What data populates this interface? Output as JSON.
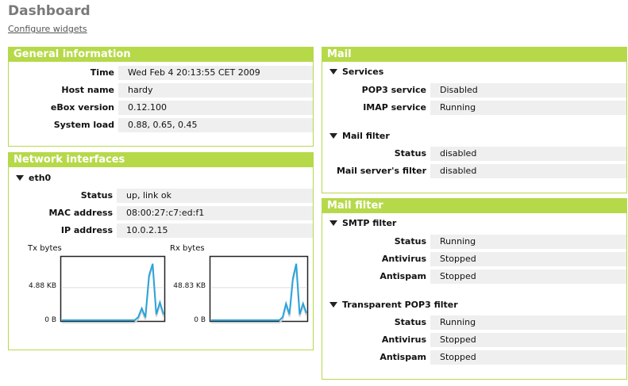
{
  "page": {
    "title": "Dashboard",
    "configure_link": "Configure widgets"
  },
  "general": {
    "title": "General information",
    "rows": [
      {
        "label": "Time",
        "value": "Wed Feb 4 20:13:55 CET 2009"
      },
      {
        "label": "Host name",
        "value": "hardy"
      },
      {
        "label": "eBox version",
        "value": "0.12.100"
      },
      {
        "label": "System load",
        "value": "0.88, 0.65, 0.45"
      }
    ]
  },
  "network": {
    "title": "Network interfaces",
    "interface": "eth0",
    "rows": [
      {
        "label": "Status",
        "value": "up, link ok"
      },
      {
        "label": "MAC address",
        "value": "08:00:27:c7:ed:f1"
      },
      {
        "label": "IP address",
        "value": "10.0.2.15"
      }
    ],
    "graphs": [
      {
        "label": "Tx bytes",
        "ticks": [
          "4.88 KB",
          "0 B"
        ],
        "values": [
          0,
          0,
          0,
          0,
          0,
          0,
          0,
          0,
          0,
          0,
          0,
          0,
          0,
          0,
          0,
          0,
          0,
          0,
          0,
          0,
          0,
          0.05,
          0.2,
          0.05,
          0.75,
          0.95,
          0.1,
          0.3,
          0.1
        ]
      },
      {
        "label": "Rx bytes",
        "ticks": [
          "48.83 KB",
          "0 B"
        ],
        "values": [
          0,
          0,
          0,
          0,
          0,
          0,
          0,
          0,
          0,
          0,
          0,
          0,
          0,
          0,
          0,
          0,
          0,
          0,
          0,
          0,
          0,
          0.05,
          0.28,
          0.1,
          0.7,
          0.95,
          0.1,
          0.28,
          0.12
        ]
      }
    ],
    "line_color": "#2aa3dc"
  },
  "mail": {
    "title": "Mail",
    "services": {
      "title": "Services",
      "rows": [
        {
          "label": "POP3 service",
          "value": "Disabled"
        },
        {
          "label": "IMAP service",
          "value": "Running"
        }
      ]
    },
    "filter": {
      "title": "Mail filter",
      "rows": [
        {
          "label": "Status",
          "value": "disabled"
        },
        {
          "label": "Mail server's filter",
          "value": "disabled"
        }
      ]
    }
  },
  "mailfilter": {
    "title": "Mail filter",
    "smtp": {
      "title": "SMTP filter",
      "rows": [
        {
          "label": "Status",
          "value": "Running"
        },
        {
          "label": "Antivirus",
          "value": "Stopped"
        },
        {
          "label": "Antispam",
          "value": "Stopped"
        }
      ]
    },
    "pop3": {
      "title": "Transparent POP3 filter",
      "rows": [
        {
          "label": "Status",
          "value": "Running"
        },
        {
          "label": "Antivirus",
          "value": "Stopped"
        },
        {
          "label": "Antispam",
          "value": "Stopped"
        }
      ]
    }
  },
  "colors": {
    "accent": "#b6d94a",
    "value_bg": "#efefef"
  }
}
